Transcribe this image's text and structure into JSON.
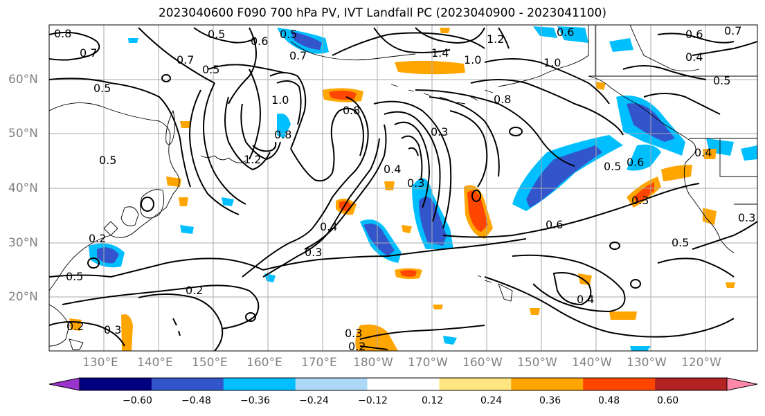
{
  "title": "2023040600 F090 700 hPa PV, IVT Landfall PC (2023040900 - 2023041100)",
  "lat_labels": [
    "60°N",
    "50°N",
    "40°N",
    "30°N",
    "20°N"
  ],
  "lon_labels": [
    "130°E",
    "140°E",
    "150°E",
    "160°E",
    "170°E",
    "180°W",
    "170°W",
    "160°W",
    "150°W",
    "140°W",
    "130°W",
    "120°W"
  ],
  "contour_labels": [
    "0.8",
    "0.7",
    "0.5",
    "0.6",
    "0.5",
    "0.7",
    "0.6",
    "0.7",
    "0.5",
    "0.6",
    "0.4",
    "0.7",
    "1.4",
    "1.0",
    "1.2",
    "1.0",
    "0.8",
    "0.5",
    "1.2",
    "1.0",
    "0.8",
    "0.8",
    "0.3",
    "0.5",
    "0.4",
    "0.3",
    "0.6",
    "0.5",
    "0.4",
    "0.6",
    "0.5",
    "0.2",
    "0.3",
    "0.5",
    "0.2",
    "0.3",
    "0.4",
    "0.3",
    "0.3",
    "0.2",
    "0.2",
    "0.4",
    "0.5",
    "0.3"
  ],
  "colorbar": {
    "ticks": [
      "−0.60",
      "−0.48",
      "−0.36",
      "−0.24",
      "−0.12",
      "0.12",
      "0.24",
      "0.36",
      "0.48",
      "0.60"
    ],
    "colors": [
      "#9933cc",
      "#000080",
      "#3355cc",
      "#00bfff",
      "#add8f8",
      "#ffffff",
      "#ffe680",
      "#ffa500",
      "#ff4500",
      "#b22222",
      "#ff88aa"
    ]
  }
}
